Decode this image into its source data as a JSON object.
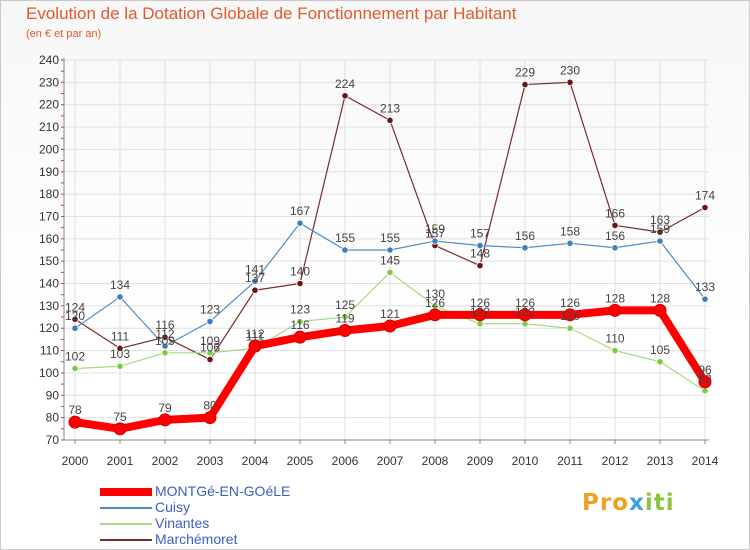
{
  "header": {
    "title": "Evolution de la Dotation Globale de Fonctionnement par Habitant",
    "subtitle": "(en € et par an)"
  },
  "logo": {
    "text": "Proxiti",
    "part1": "Pro",
    "part2": "x",
    "part3": "iti"
  },
  "colors": {
    "title": "#e05a2b",
    "grid": "#e0e0e0",
    "axis_tick_marks": "#cc3333",
    "legend_text": "#3b5fbf"
  },
  "chart_data": {
    "type": "line",
    "title": "Evolution de la Dotation Globale de Fonctionnement par Habitant",
    "subtitle": "(en € et par an)",
    "xlabel": "",
    "ylabel": "",
    "ylim": [
      70,
      240
    ],
    "yticks": [
      70,
      80,
      90,
      100,
      110,
      120,
      130,
      140,
      150,
      160,
      170,
      180,
      190,
      200,
      210,
      220,
      230,
      240
    ],
    "grid": true,
    "legend_position": "bottom-left",
    "categories": [
      "2000",
      "2001",
      "2002",
      "2003",
      "2004",
      "2005",
      "2006",
      "2007",
      "2008",
      "2009",
      "2010",
      "2011",
      "2012",
      "2013",
      "2014"
    ],
    "series": [
      {
        "name": "Marchémoret",
        "color": "#7b2b2b",
        "marker_color": "#6b1414",
        "values": [
          124,
          111,
          116,
          106,
          137,
          140,
          224,
          213,
          157,
          148,
          229,
          230,
          166,
          163,
          174
        ],
        "labels": [
          "124",
          "111",
          "116",
          "106",
          "137",
          "140",
          "224",
          "213",
          "157",
          "148",
          "229",
          "230",
          "166",
          "163",
          "174"
        ]
      },
      {
        "name": "Cuisy",
        "color": "#4d8cc4",
        "marker_color": "#3a7fc0",
        "values": [
          120,
          134,
          112,
          123,
          141,
          167,
          155,
          155,
          159,
          157,
          156,
          158,
          156,
          159,
          133
        ],
        "labels": [
          "120",
          "134",
          "112",
          "123",
          "141",
          "167",
          "155",
          "155",
          "159",
          "157",
          "156",
          "158",
          "156",
          "159",
          "133"
        ]
      },
      {
        "name": "Vinantes",
        "color": "#a3db7f",
        "marker_color": "#7ccb44",
        "values": [
          102,
          103,
          109,
          109,
          111,
          123,
          125,
          145,
          130,
          122,
          122,
          120,
          110,
          105,
          92
        ],
        "labels": [
          "102",
          "103",
          "109",
          "109",
          "111",
          "123",
          "125",
          "145",
          "130",
          "122",
          "122",
          "120",
          "110",
          "105",
          "92"
        ]
      },
      {
        "name": "MONTGé-EN-GOéLE",
        "color": "#ff0000",
        "marker_color": "#ff0000",
        "values": [
          78,
          75,
          79,
          80,
          112,
          116,
          119,
          121,
          126,
          126,
          126,
          126,
          128,
          128,
          96
        ],
        "labels": [
          "78",
          "75",
          "79",
          "80",
          "112",
          "116",
          "119",
          "121",
          "126",
          "126",
          "126",
          "126",
          "128",
          "128",
          "96"
        ]
      }
    ]
  },
  "legend": {
    "items": [
      {
        "label": "MONTGé-EN-GOéLE",
        "color": "#ff0000",
        "thick": true
      },
      {
        "label": "Cuisy",
        "color": "#4d8cc4",
        "thick": false
      },
      {
        "label": "Vinantes",
        "color": "#a3db7f",
        "thick": false
      },
      {
        "label": "Marchémoret",
        "color": "#7b2b2b",
        "thick": false
      }
    ]
  }
}
